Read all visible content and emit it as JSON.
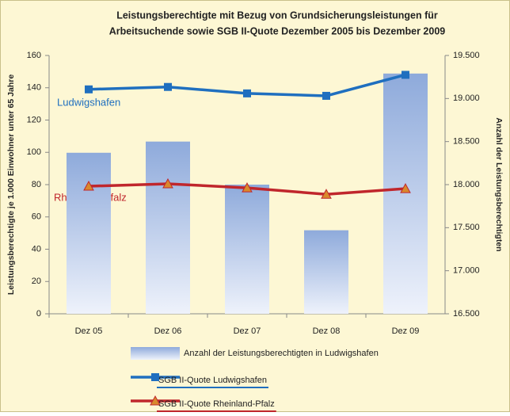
{
  "chart_data": {
    "type": "bar-line",
    "title": [
      "Leistungsberechtigte mit Bezug von Grundsicherungsleistungen für",
      "Arbeitsuchende sowie SGB II-Quote Dezember 2005 bis Dezember 2009"
    ],
    "ylabel": "Leistungsberechtigte je 1.000 Einwohner unter 65 Jahre",
    "y2label": "Anzahl der Leistungsberechtigten",
    "categories": [
      "Dez 05",
      "Dez 06",
      "Dez 07",
      "Dez 08",
      "Dez 09"
    ],
    "series": [
      {
        "name": "Anzahl der Leistungsberechtigten in Ludwigshafen",
        "type": "bar",
        "axis": "y2",
        "color": "#8eaadb",
        "values": [
          18370,
          18500,
          18000,
          17470,
          19290
        ]
      },
      {
        "name": "SGB II-Quote Ludwigshafen",
        "type": "line",
        "marker": "square",
        "color": "#1f6fbf",
        "marker_color": "#1f6fbf",
        "values": [
          139,
          140.5,
          136.5,
          135,
          148
        ]
      },
      {
        "name": "SGB II-Quote Rheinland-Pfalz",
        "type": "line",
        "marker": "triangle",
        "color": "#c0262c",
        "marker_color": "#d9892c",
        "values": [
          79,
          80.5,
          78,
          74,
          77.5
        ]
      }
    ],
    "annotations": [
      "Ludwigshafen",
      "Rheinland-Pfalz"
    ],
    "ylim": [
      0,
      160
    ],
    "yticks": [
      0,
      20,
      40,
      60,
      80,
      100,
      120,
      140,
      160
    ],
    "y2lim": [
      16500,
      19500
    ],
    "y2ticks": [
      {
        "value": 16500,
        "label": "16.500"
      },
      {
        "value": 17000,
        "label": "17.000"
      },
      {
        "value": 17500,
        "label": "17.500"
      },
      {
        "value": 18000,
        "label": "18.000"
      },
      {
        "value": 18500,
        "label": "18.500"
      },
      {
        "value": 19000,
        "label": "19.000"
      },
      {
        "value": 19500,
        "label": "19.500"
      }
    ]
  }
}
